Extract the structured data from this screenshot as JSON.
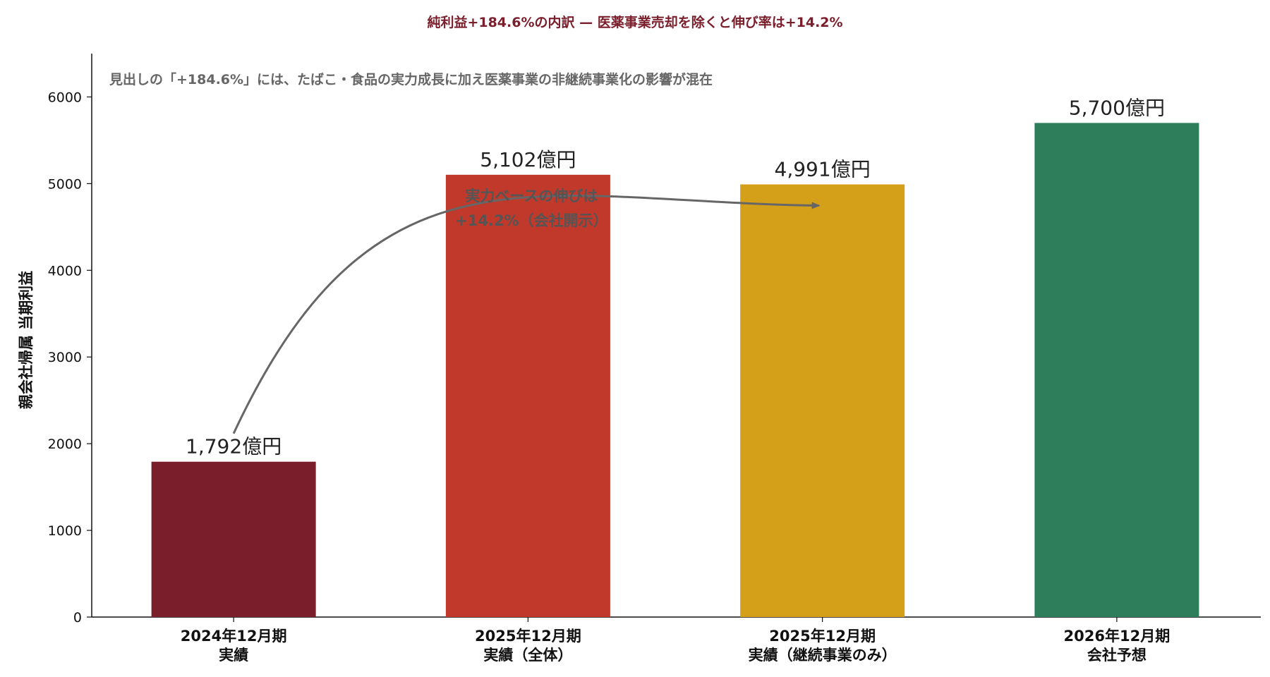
{
  "chart_data": {
    "type": "bar",
    "title": "純利益+184.6%の内訳 — 医薬事業売却を除くと伸び率は+14.2%",
    "subtitle": "見出しの「+184.6%」には、たばこ・食品の実力成長に加え医薬事業の非継続事業化の影響が混在",
    "xlabel": "",
    "ylabel": "親会社帰属 当期利益",
    "ylim": [
      0,
      6500
    ],
    "yticks": [
      0,
      1000,
      2000,
      3000,
      4000,
      5000,
      6000
    ],
    "grid": false,
    "categories": [
      [
        "2024年12月期",
        "実績"
      ],
      [
        "2025年12月期",
        "実績（全体）"
      ],
      [
        "2025年12月期",
        "実績（継続事業のみ）"
      ],
      [
        "2026年12月期",
        "会社予想"
      ]
    ],
    "values": [
      1792,
      5102,
      4991,
      5700
    ],
    "data_labels": [
      "1,792億円",
      "5,102億円",
      "4,991億円",
      "5,700億円"
    ],
    "bar_colors": [
      "#7b1e2c",
      "#c0392b",
      "#d4a01a",
      "#2e7d5b"
    ],
    "annotation": {
      "text": [
        "実力ベースの伸びは",
        "+14.2%（会社開示）"
      ],
      "from_category": 0,
      "to_category": 2
    },
    "colors": {
      "title": "#7b1e2c",
      "subtitle": "#666666",
      "axis": "#111111",
      "arrow": "#666666",
      "annotation": "#555555"
    }
  }
}
